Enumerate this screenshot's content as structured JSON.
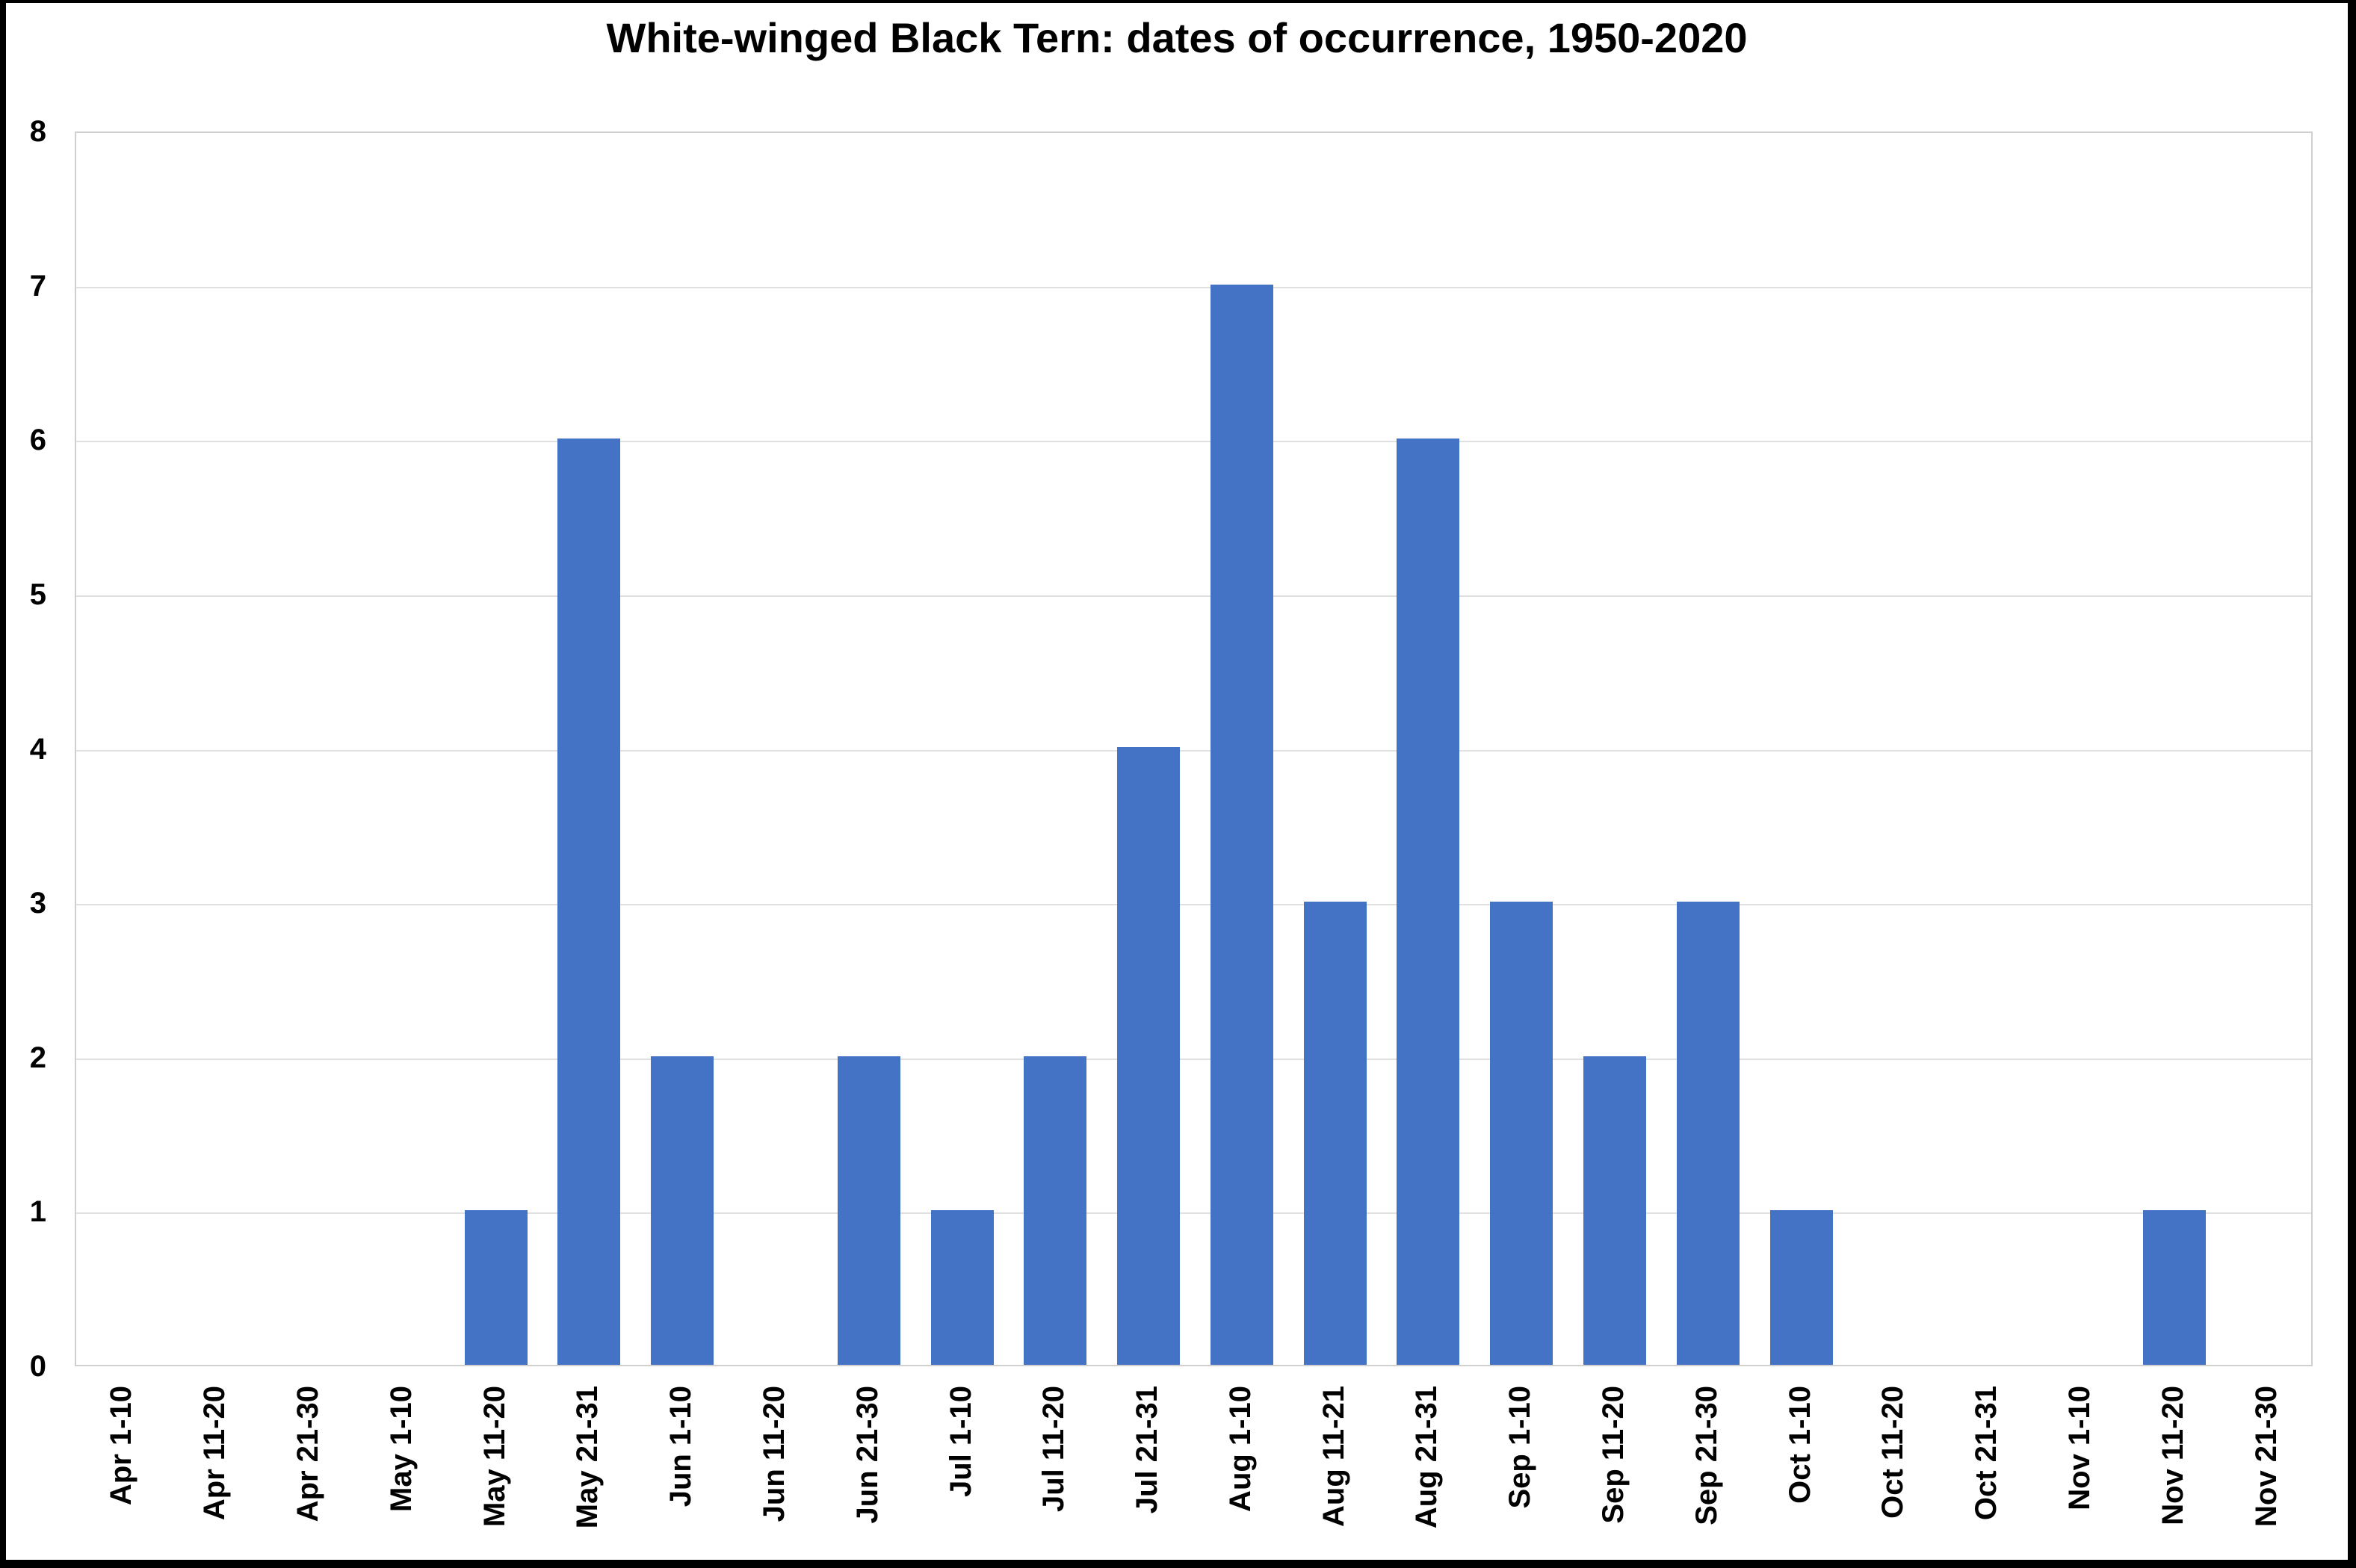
{
  "chart_data": {
    "type": "bar",
    "title": "White-winged Black Tern: dates of occurrence, 1950-2020",
    "categories": [
      "Apr 1-10",
      "Apr 11-20",
      "Apr 21-30",
      "May 1-10",
      "May 11-20",
      "May 21-31",
      "Jun 1-10",
      "Jun 11-20",
      "Jun 21-30",
      "Jul 1-10",
      "Jul 11-20",
      "Jul 21-31",
      "Aug 1-10",
      "Aug 11-21",
      "Aug 21-31",
      "Sep 1-10",
      "Sep 11-20",
      "Sep 21-30",
      "Oct 1-10",
      "Oct 11-20",
      "Oct 21-31",
      "Nov 1-10",
      "Nov 11-20",
      "Nov 21-30"
    ],
    "values": [
      0,
      0,
      0,
      0,
      1,
      6,
      2,
      0,
      2,
      1,
      2,
      4,
      7,
      3,
      6,
      3,
      2,
      3,
      1,
      0,
      0,
      0,
      1,
      0
    ],
    "xlabel": "",
    "ylabel": "",
    "ylim": [
      0,
      8
    ],
    "yticks": [
      0,
      1,
      2,
      3,
      4,
      5,
      6,
      7,
      8
    ],
    "grid": "horizontal",
    "legend": "none",
    "bar_color": "#4472C4",
    "gridline_color": "#E0E0E0",
    "plot_border_color": "#D0D0D0",
    "frame_color": "#000000",
    "text_color": "#000000",
    "background": "#FFFFFF"
  }
}
